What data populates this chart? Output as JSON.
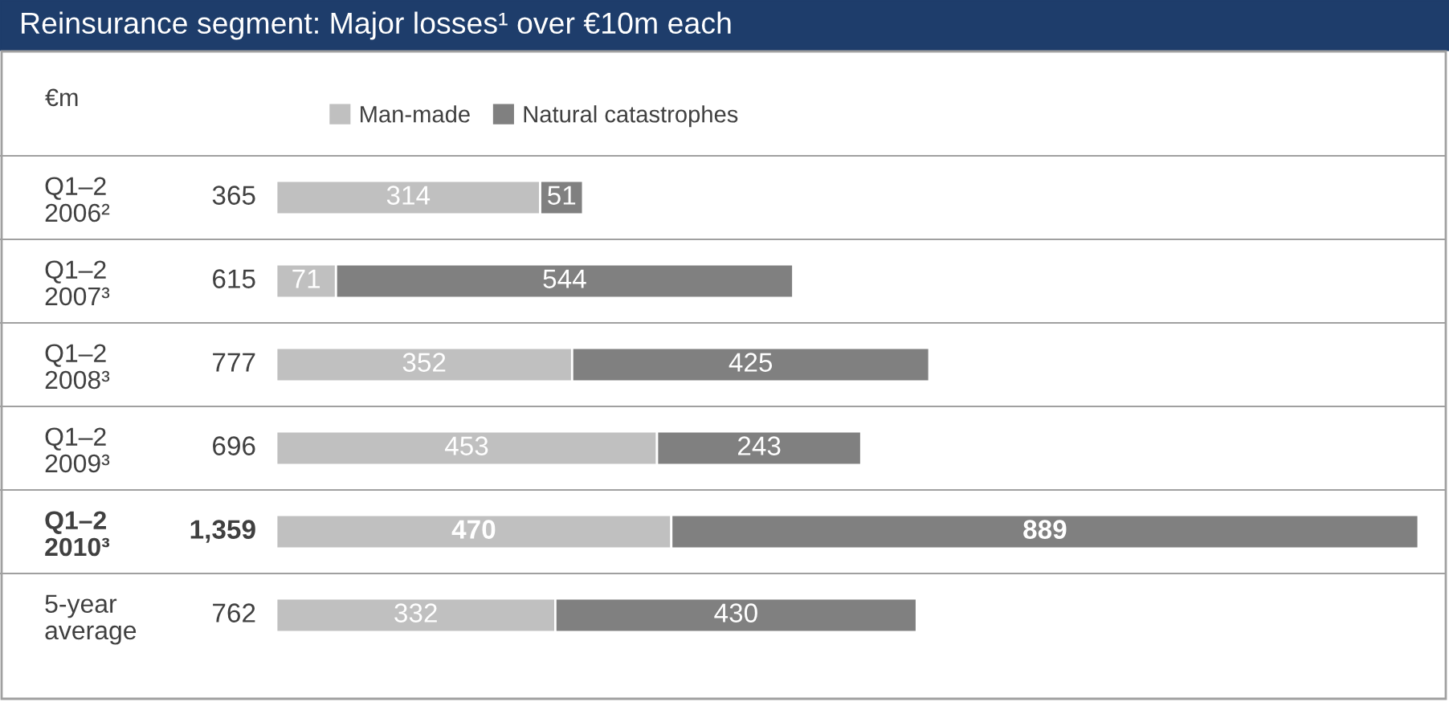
{
  "chart_data": {
    "type": "bar",
    "orientation": "horizontal",
    "stacked": true,
    "title": "Reinsurance segment: Major losses¹ over €10m each",
    "ylabel": "€m",
    "categories": [
      "Q1–2\n2006²",
      "Q1–2\n2007³",
      "Q1–2\n2008³",
      "Q1–2\n2009³",
      "Q1–2\n2010³",
      "5-year\naverage"
    ],
    "series": [
      {
        "name": "Man-made",
        "color": "#c0c0c0",
        "values": [
          314,
          71,
          352,
          453,
          470,
          332
        ]
      },
      {
        "name": "Natural catastrophes",
        "color": "#808080",
        "values": [
          51,
          544,
          425,
          243,
          889,
          430
        ]
      }
    ],
    "totals": [
      "365",
      "615",
      "777",
      "696",
      "1,359",
      "762"
    ],
    "data_labels": true,
    "legend": "top",
    "tick_labels": "y"
  }
}
